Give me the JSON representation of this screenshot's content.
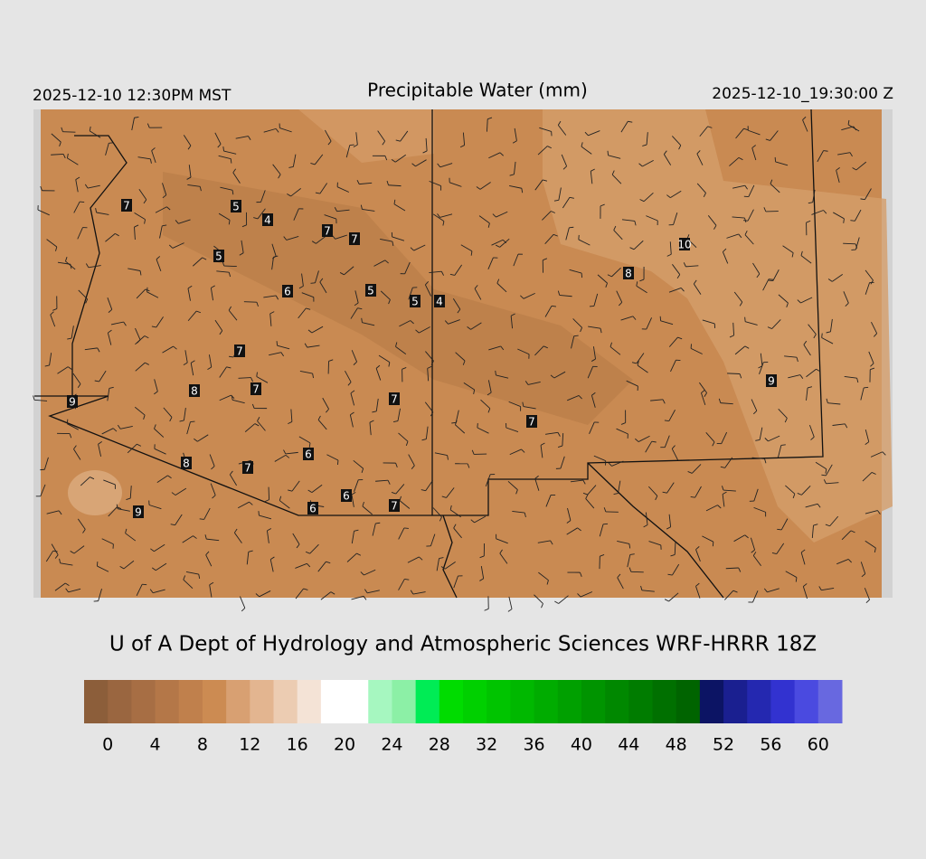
{
  "header": {
    "left": "2025-12-10 12:30PM MST",
    "title": "Precipitable Water (mm)",
    "right": "2025-12-10_19:30:00 Z"
  },
  "stations": [
    7,
    5,
    4,
    7,
    7,
    5,
    6,
    5,
    5,
    4,
    10,
    8,
    7,
    8,
    7,
    7,
    9,
    9,
    7,
    8,
    7,
    6,
    6,
    6,
    7,
    9
  ],
  "credit": "U of A Dept of Hydrology and Atmospheric Sciences WRF-HRRR 18Z",
  "colorbar": {
    "lim": [
      -2,
      62
    ],
    "ticks": [
      0,
      4,
      8,
      12,
      16,
      20,
      24,
      28,
      32,
      36,
      40,
      44,
      48,
      52,
      56,
      60
    ],
    "colors": [
      "#8c5e3a",
      "#9a6640",
      "#a76e44",
      "#b47748",
      "#c0804c",
      "#cc8b52",
      "#d8a072",
      "#e3b590",
      "#ecccb2",
      "#f4e3d6",
      "#ffffff",
      "#ffffff",
      "#a6f7c0",
      "#8cf0a6",
      "#00ec55",
      "#00dc00",
      "#00d000",
      "#00c400",
      "#00b800",
      "#00ac00",
      "#00a000",
      "#009400",
      "#008800",
      "#007c00",
      "#007000",
      "#006400",
      "#0c1464",
      "#1a1f90",
      "#2428b0",
      "#3232d0",
      "#4a4ae0",
      "#6868e0"
    ]
  }
}
